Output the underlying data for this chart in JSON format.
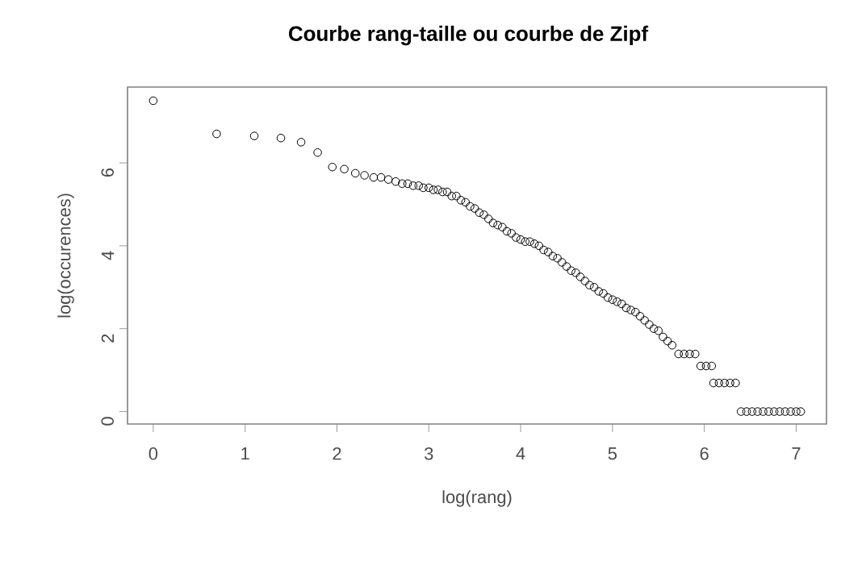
{
  "chart_data": {
    "type": "scatter",
    "title": "Courbe rang-taille ou courbe de Zipf",
    "xlabel": "log(rang)",
    "ylabel": "log(occurences)",
    "xlim": [
      -0.28,
      7.33
    ],
    "ylim": [
      -0.3,
      7.83
    ],
    "xticks": [
      0,
      1,
      2,
      3,
      4,
      5,
      6,
      7
    ],
    "yticks": [
      0,
      2,
      4,
      6
    ],
    "marker": "circle",
    "series": [
      {
        "color": "#000000",
        "x": [
          0,
          0.69,
          1.1,
          1.39,
          1.61,
          1.79,
          1.95,
          2.08,
          2.2,
          2.3,
          2.4,
          2.48,
          2.56,
          2.64,
          2.71,
          2.77,
          2.83,
          2.89,
          2.94,
          3.0,
          3.05,
          3.1,
          3.15,
          3.2,
          3.25,
          3.3,
          3.35,
          3.4,
          3.45,
          3.5,
          3.55,
          3.6,
          3.65,
          3.7,
          3.75,
          3.8,
          3.85,
          3.9,
          3.95,
          4.0,
          4.05,
          4.1,
          4.15,
          4.2,
          4.25,
          4.3,
          4.35,
          4.4,
          4.45,
          4.5,
          4.55,
          4.6,
          4.65,
          4.7,
          4.75,
          4.8,
          4.85,
          4.9,
          4.95,
          5.0,
          5.05,
          5.1,
          5.15,
          5.2,
          5.25,
          5.3,
          5.35,
          5.4,
          5.45,
          5.5,
          5.55,
          5.6,
          5.65,
          5.72,
          5.78,
          5.84,
          5.9,
          5.96,
          6.02,
          6.08,
          6.1,
          6.16,
          6.22,
          6.28,
          6.34,
          6.4,
          6.46,
          6.52,
          6.58,
          6.64,
          6.7,
          6.76,
          6.82,
          6.88,
          6.94,
          7.0,
          7.05
        ],
        "values": [
          7.5,
          6.7,
          6.65,
          6.6,
          6.5,
          6.25,
          5.9,
          5.85,
          5.75,
          5.7,
          5.65,
          5.65,
          5.6,
          5.55,
          5.5,
          5.5,
          5.45,
          5.45,
          5.4,
          5.4,
          5.35,
          5.35,
          5.3,
          5.3,
          5.2,
          5.2,
          5.1,
          5.05,
          4.95,
          4.9,
          4.8,
          4.75,
          4.65,
          4.55,
          4.5,
          4.45,
          4.35,
          4.3,
          4.2,
          4.15,
          4.1,
          4.1,
          4.05,
          4.0,
          3.9,
          3.85,
          3.75,
          3.7,
          3.6,
          3.5,
          3.4,
          3.35,
          3.25,
          3.15,
          3.05,
          3.0,
          2.9,
          2.85,
          2.75,
          2.7,
          2.65,
          2.6,
          2.5,
          2.45,
          2.4,
          2.3,
          2.2,
          2.1,
          2.0,
          1.95,
          1.8,
          1.7,
          1.6,
          1.39,
          1.39,
          1.39,
          1.39,
          1.1,
          1.1,
          1.1,
          0.69,
          0.69,
          0.69,
          0.69,
          0.69,
          0,
          0,
          0,
          0,
          0,
          0,
          0,
          0,
          0,
          0,
          0,
          0
        ]
      }
    ]
  }
}
